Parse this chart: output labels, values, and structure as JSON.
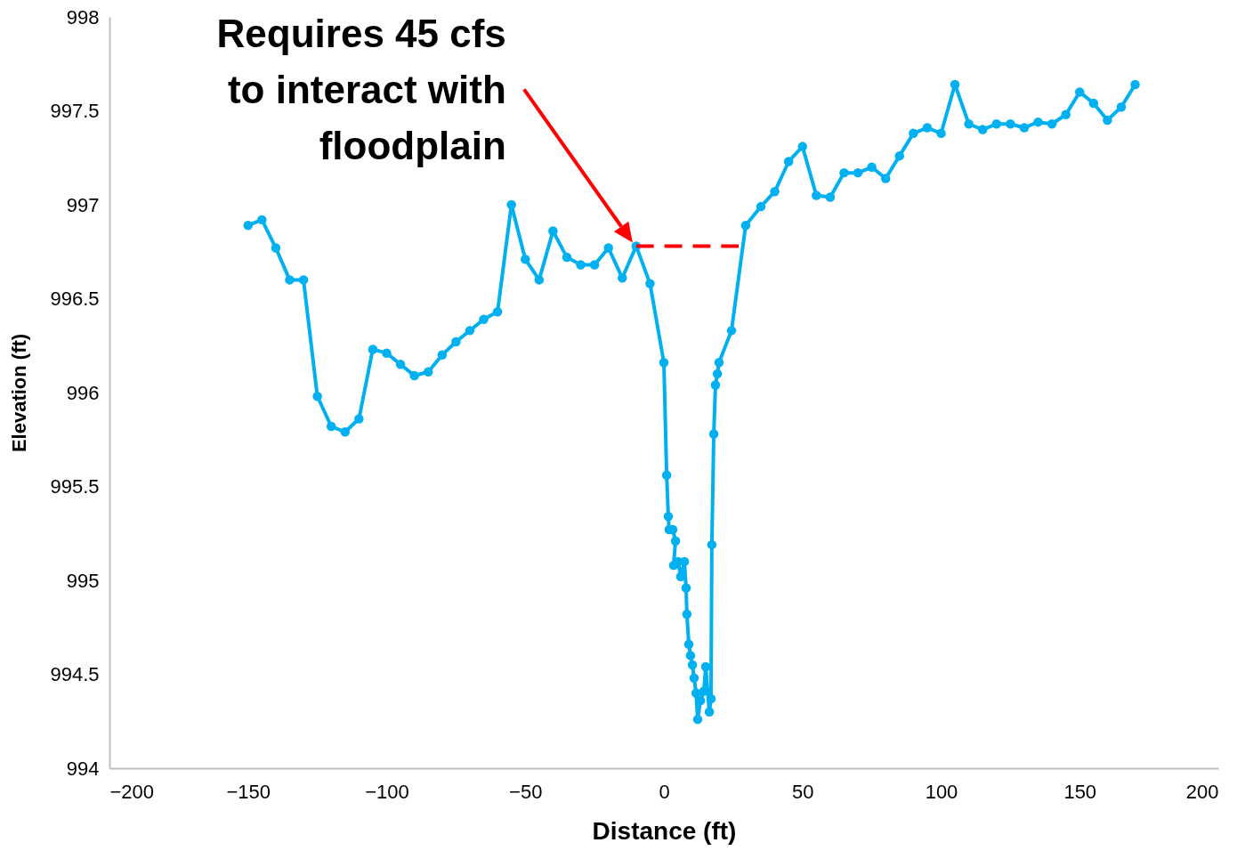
{
  "chart_data": {
    "type": "line",
    "xlabel": "Distance (ft)",
    "ylabel": "Elevation (ft)",
    "xlim": [
      -200,
      200
    ],
    "xticks": [
      -200,
      -150,
      -100,
      -50,
      0,
      50,
      100,
      150,
      200
    ],
    "ylim": [
      994,
      998
    ],
    "yticks": [
      994,
      994.5,
      995,
      995.5,
      996,
      996.5,
      997,
      997.5,
      998
    ],
    "grid": false,
    "marker": "circle",
    "line_style": "solid",
    "annotations": [
      "Requires 45 cfs\nto interact with\nfloodplain"
    ],
    "series": [
      {
        "color": "#00b0f0",
        "x": [
          -150,
          -145,
          -140,
          -135,
          -130,
          -125,
          -120,
          -115,
          -110,
          -105,
          -100,
          -95,
          -90,
          -85,
          -80,
          -75,
          -70,
          -65,
          -60,
          -55,
          -50,
          -45,
          -40,
          -35,
          -30,
          -25,
          -20,
          -15,
          -10,
          -5,
          0,
          1,
          1.6,
          1.9,
          3.2,
          4.2,
          3.5,
          5.1,
          6.1,
          7.4,
          8,
          8.3,
          9,
          9.6,
          10.3,
          10.9,
          11.6,
          12.2,
          13.2,
          14.4,
          15.1,
          16.4,
          17,
          17.3,
          18,
          18.6,
          19.3,
          19.9,
          24.4,
          29.5,
          35,
          40,
          45,
          50,
          55,
          60,
          65,
          70,
          75,
          80,
          85,
          90,
          95,
          100,
          105,
          110,
          115,
          120,
          125,
          130,
          135,
          140,
          145,
          150,
          155,
          160,
          165,
          170
        ],
        "values": [
          996.89,
          996.92,
          996.77,
          996.6,
          996.6,
          995.98,
          995.82,
          995.79,
          995.86,
          996.23,
          996.21,
          996.15,
          996.09,
          996.11,
          996.2,
          996.27,
          996.33,
          996.39,
          996.43,
          997,
          996.71,
          996.6,
          996.86,
          996.72,
          996.68,
          996.68,
          996.77,
          996.61,
          996.78,
          996.58,
          996.16,
          995.56,
          995.34,
          995.27,
          995.27,
          995.21,
          995.08,
          995.1,
          995.02,
          995.1,
          994.96,
          994.82,
          994.66,
          994.6,
          994.55,
          994.48,
          994.4,
          994.26,
          994.36,
          994.41,
          994.54,
          994.3,
          994.37,
          995.19,
          995.78,
          996.04,
          996.1,
          996.16,
          996.33,
          996.89,
          996.99,
          997.07,
          997.23,
          997.31,
          997.05,
          997.04,
          997.17,
          997.17,
          997.2,
          997.14,
          997.26,
          997.38,
          997.41,
          997.38,
          997.64,
          997.43,
          997.4,
          997.43,
          997.43,
          997.41,
          997.44,
          997.43,
          997.48,
          997.6,
          997.54,
          997.45,
          997.52,
          997.64
        ]
      },
      {
        "color": "#ff0000",
        "line_style": "dashed",
        "marker": "none",
        "x": [
          -10,
          27
        ],
        "values": [
          996.78,
          996.78
        ]
      }
    ]
  }
}
